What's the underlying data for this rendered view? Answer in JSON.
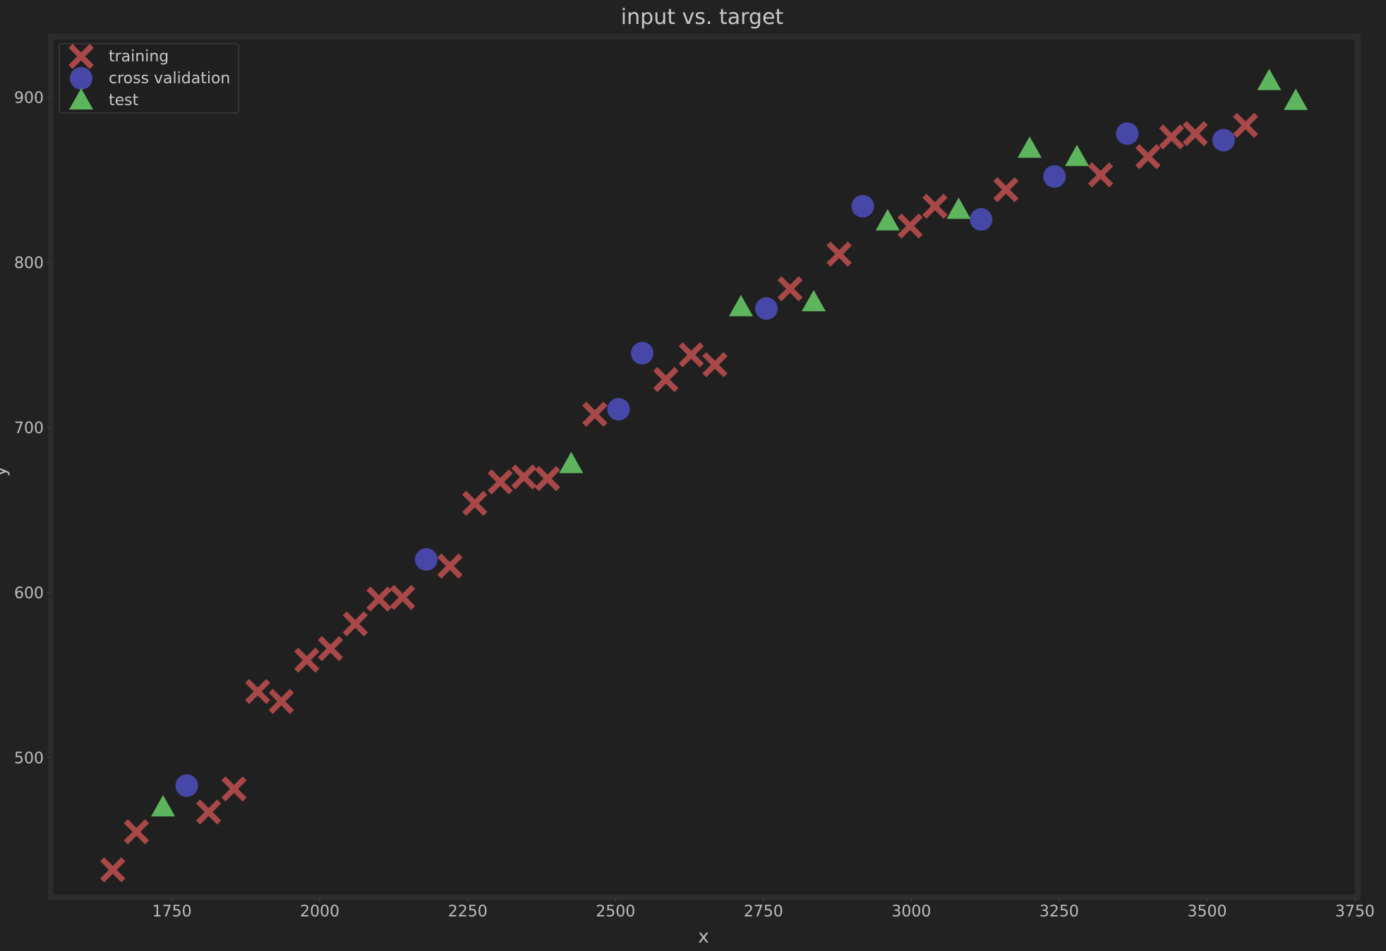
{
  "chart_data": {
    "type": "scatter",
    "title": "input vs. target",
    "xlabel": "x",
    "ylabel": "y",
    "xlim": [
      1550,
      3750
    ],
    "ylim": [
      417,
      935
    ],
    "xticks": [
      1750,
      2000,
      2250,
      2500,
      2750,
      3000,
      3250,
      3500,
      3750
    ],
    "yticks": [
      500,
      600,
      700,
      800,
      900
    ],
    "grid": false,
    "legend_position": "top-left",
    "series": [
      {
        "name": "training",
        "marker": "x",
        "color": "#a84848",
        "points": [
          [
            1650,
            432
          ],
          [
            1690,
            455
          ],
          [
            1812,
            467
          ],
          [
            1855,
            481
          ],
          [
            1895,
            540
          ],
          [
            1935,
            534
          ],
          [
            1978,
            559
          ],
          [
            2018,
            566
          ],
          [
            2060,
            581
          ],
          [
            2100,
            596
          ],
          [
            2140,
            597
          ],
          [
            2220,
            616
          ],
          [
            2262,
            654
          ],
          [
            2305,
            667
          ],
          [
            2345,
            670
          ],
          [
            2385,
            669
          ],
          [
            2465,
            708
          ],
          [
            2585,
            729
          ],
          [
            2628,
            744
          ],
          [
            2668,
            738
          ],
          [
            2795,
            784
          ],
          [
            2878,
            805
          ],
          [
            2998,
            822
          ],
          [
            3040,
            834
          ],
          [
            3160,
            844
          ],
          [
            3320,
            853
          ],
          [
            3400,
            864
          ],
          [
            3440,
            876
          ],
          [
            3480,
            878
          ],
          [
            3565,
            883
          ]
        ]
      },
      {
        "name": "cross validation",
        "marker": "circle",
        "color": "#4747a8",
        "points": [
          [
            1775,
            483
          ],
          [
            2180,
            620
          ],
          [
            2505,
            711
          ],
          [
            2545,
            745
          ],
          [
            2755,
            772
          ],
          [
            2918,
            834
          ],
          [
            3118,
            826
          ],
          [
            3242,
            852
          ],
          [
            3365,
            878
          ],
          [
            3528,
            874
          ]
        ]
      },
      {
        "name": "test",
        "marker": "triangle",
        "color": "#5db55d",
        "points": [
          [
            1735,
            470
          ],
          [
            2425,
            678
          ],
          [
            2712,
            773
          ],
          [
            2835,
            776
          ],
          [
            2960,
            825
          ],
          [
            3080,
            832
          ],
          [
            3200,
            869
          ],
          [
            3280,
            864
          ],
          [
            3605,
            910
          ],
          [
            3650,
            898
          ]
        ]
      }
    ]
  }
}
